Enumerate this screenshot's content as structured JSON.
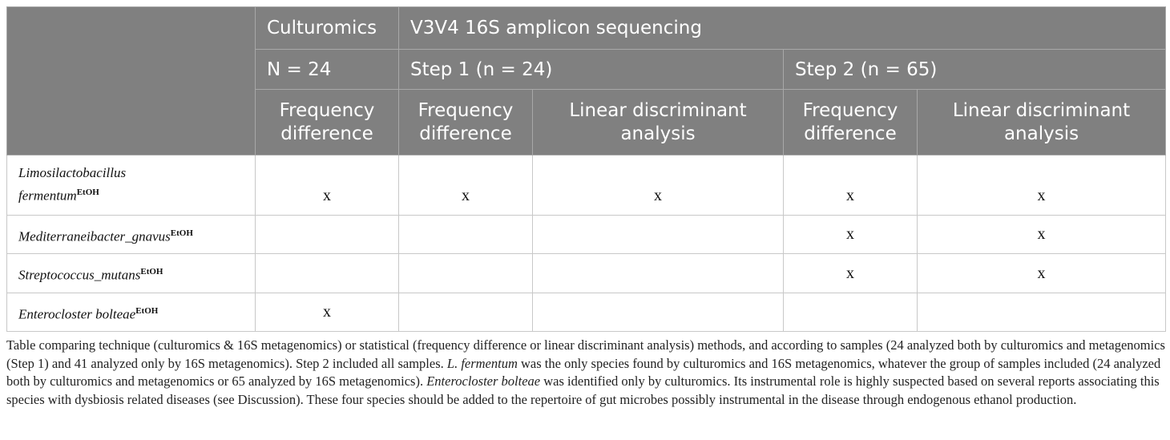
{
  "header": {
    "culturomics": "Culturomics",
    "sequencing": "V3V4 16S amplicon sequencing",
    "n_culturomics": "N = 24",
    "step1": "Step 1 (n = 24)",
    "step2": "Step 2 (n = 65)",
    "freq_diff_line1": "Frequency",
    "freq_diff_line2": "difference",
    "lda_line1": "Linear discriminant",
    "lda_line2": "analysis"
  },
  "rows": [
    {
      "species_line1": "Limosilactobacillus",
      "species_line2": "fermentum",
      "superscript": "EtOH",
      "marks": [
        "x",
        "x",
        "x",
        "x",
        "x"
      ]
    },
    {
      "species_line1": "Mediterraneibacter_gnavus",
      "species_line2": "",
      "superscript": "EtOH",
      "marks": [
        "",
        "",
        "",
        "x",
        "x"
      ]
    },
    {
      "species_line1": "Streptococcus_mutans",
      "species_line2": "",
      "superscript": "EtOH",
      "marks": [
        "",
        "",
        "",
        "x",
        "x"
      ]
    },
    {
      "species_line1": "Enterocloster bolteae",
      "species_line2": "",
      "superscript": "EtOH",
      "marks": [
        "x",
        "",
        "",
        "",
        ""
      ]
    }
  ],
  "caption": {
    "part1": "Table comparing technique (culturomics & 16S metagenomics) or statistical (frequency difference or linear discriminant analysis) methods, and according to samples (24 analyzed both by culturomics and metagenomics (Step 1) and 41 analyzed only by 16S metagenomics). Step 2 included all samples. ",
    "italic1": "L. fermentum",
    "part2": " was the only species found by culturomics and 16S metagenomics, whatever the group of samples included (24 analyzed both by culturomics and metagenomics or 65 analyzed by 16S metagenomics). ",
    "italic2": "Enterocloster bolteae",
    "part3": " was identified only by culturomics. Its instrumental role is highly suspected based on several reports associating this species with dysbiosis related diseases (see Discussion). These four species should be added to the repertoire of gut microbes possibly instrumental in the disease through endogenous ethanol production."
  }
}
